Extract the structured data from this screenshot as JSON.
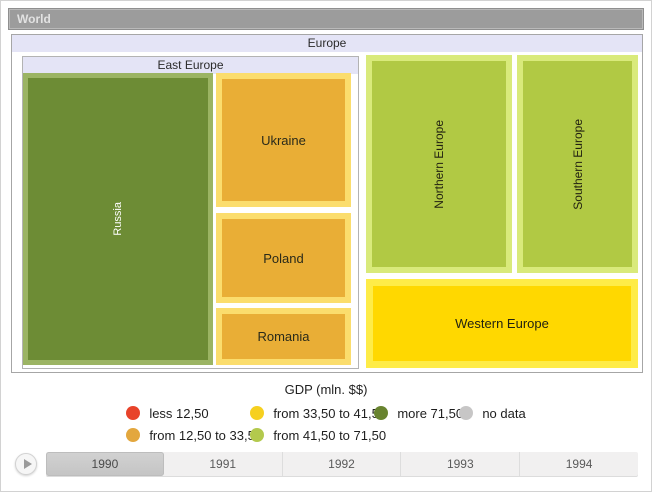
{
  "window": {
    "title": "World"
  },
  "treemap": {
    "root_label": "Europe",
    "group_label": "East Europe",
    "tiles": {
      "russia": {
        "label": "Russia",
        "fill": "#6d8c35",
        "border": "#9bb463",
        "text_color": "#ffffff"
      },
      "ukraine": {
        "label": "Ukraine",
        "fill": "#e9ae36",
        "border": "#fbdd6d",
        "text_color": "#2a2a1a"
      },
      "poland": {
        "label": "Poland",
        "fill": "#e9ae36",
        "border": "#fbdd6d",
        "text_color": "#2a2a1a"
      },
      "romania": {
        "label": "Romania",
        "fill": "#e9ae36",
        "border": "#fbdd6d",
        "text_color": "#2a2a1a"
      },
      "northern": {
        "label": "Northern Europe",
        "fill": "#b1c944",
        "border": "#d9ea7b",
        "text_color": "#222211"
      },
      "southern": {
        "label": "Southern Europe",
        "fill": "#b1c944",
        "border": "#d9ea7b",
        "text_color": "#222211"
      },
      "western": {
        "label": "Western Europe",
        "fill": "#ffd800",
        "border": "#feec48",
        "text_color": "#222211"
      }
    }
  },
  "legend": {
    "title": "GDP (mln. $$)",
    "items": [
      {
        "label": "less 12,50",
        "color": "#e8432a"
      },
      {
        "label": "from 12,50 to 33,50",
        "color": "#e3a73e"
      },
      {
        "label": "from 33,50 to 41,50",
        "color": "#f6d01f"
      },
      {
        "label": "from 41,50 to 71,50",
        "color": "#b3c94d"
      },
      {
        "label": "more 71,50",
        "color": "#68832f"
      },
      {
        "label": "no data",
        "color": "#c7c6c6"
      }
    ]
  },
  "timeline": {
    "years": [
      "1990",
      "1991",
      "1992",
      "1993",
      "1994"
    ],
    "selected": "1990"
  },
  "chart_data": {
    "type": "treemap",
    "title": "World",
    "legend_title": "GDP (mln. $$)",
    "legend_position": "bottom",
    "bins": [
      {
        "label": "less 12,50",
        "color": "#e8432a"
      },
      {
        "label": "from 12,50 to 33,50",
        "color": "#e3a73e"
      },
      {
        "label": "from 33,50 to 41,50",
        "color": "#f6d01f"
      },
      {
        "label": "from 41,50 to 71,50",
        "color": "#b3c94d"
      },
      {
        "label": "more 71,50",
        "color": "#68832f"
      },
      {
        "label": "no data",
        "color": "#c7c6c6"
      }
    ],
    "hierarchy": {
      "name": "Europe",
      "children": [
        {
          "name": "East Europe",
          "children": [
            {
              "name": "Russia",
              "bin": "more 71,50",
              "relative_size": "largest"
            },
            {
              "name": "Ukraine",
              "bin": "from 12,50 to 33,50",
              "relative_size": "medium"
            },
            {
              "name": "Poland",
              "bin": "from 12,50 to 33,50",
              "relative_size": "small"
            },
            {
              "name": "Romania",
              "bin": "from 12,50 to 33,50",
              "relative_size": "smallest"
            }
          ]
        },
        {
          "name": "Northern Europe",
          "bin": "from 41,50 to 71,50",
          "relative_size": "large"
        },
        {
          "name": "Southern Europe",
          "bin": "from 41,50 to 71,50",
          "relative_size": "medium"
        },
        {
          "name": "Western Europe",
          "bin": "from 33,50 to 41,50",
          "relative_size": "medium"
        }
      ]
    },
    "timeline": {
      "years": [
        "1990",
        "1991",
        "1992",
        "1993",
        "1994"
      ],
      "selected": "1990"
    }
  }
}
